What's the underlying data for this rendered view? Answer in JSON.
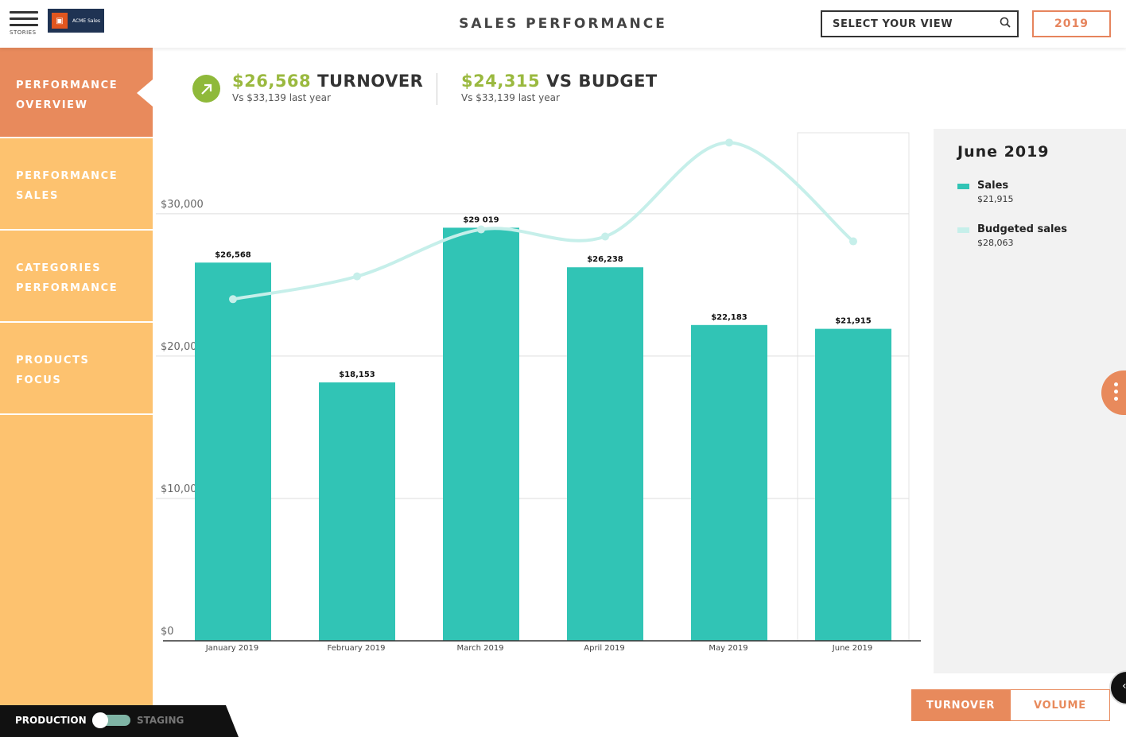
{
  "header": {
    "menu_label": "STORIES",
    "logo_text": "ACME Sales",
    "title": "SALES PERFORMANCE",
    "search_placeholder": "SELECT YOUR VIEW",
    "year": "2019"
  },
  "sidebar": {
    "items": [
      {
        "line1": "PERFORMANCE",
        "line2": "OVERVIEW",
        "active": true
      },
      {
        "line1": "PERFORMANCE",
        "line2": "SALES",
        "active": false
      },
      {
        "line1": "CATEGORIES",
        "line2": "PERFORMANCE",
        "active": false
      },
      {
        "line1": "PRODUCTS",
        "line2": "FOCUS",
        "active": false
      }
    ]
  },
  "kpis": [
    {
      "value": "$26,568",
      "label": "TURNOVER",
      "sub": "Vs $33,139 last year"
    },
    {
      "value": "$24,315",
      "label": "VS BUDGET",
      "sub": "Vs $33,139 last year"
    }
  ],
  "chart_data": {
    "type": "bar",
    "categories": [
      "January 2019",
      "February 2019",
      "March 2019",
      "April 2019",
      "May 2019",
      "June 2019"
    ],
    "series": [
      {
        "name": "Sales",
        "type": "bar",
        "values": [
          26568,
          18153,
          29019,
          26238,
          22183,
          21915
        ],
        "labels": [
          "$26,568",
          "$18,153",
          "$29 019",
          "$26,238",
          "$22,183",
          "$21,915"
        ]
      },
      {
        "name": "Budgeted sales",
        "type": "line",
        "values": [
          24000,
          25600,
          28900,
          28400,
          35000,
          28063
        ]
      }
    ],
    "y_ticks": [
      "$0",
      "$10,000",
      "$20,000",
      "$30,000"
    ],
    "y_tick_values": [
      0,
      10000,
      20000,
      30000
    ],
    "ylim": [
      0,
      35800
    ],
    "highlighted_category": "June 2019",
    "colors": {
      "bar": "#31c4b5",
      "line": "#c6efea"
    }
  },
  "legend": {
    "title": "June 2019",
    "items": [
      {
        "name": "Sales",
        "value": "$21,915",
        "color": "#31c4b5"
      },
      {
        "name": "Budgeted sales",
        "value": "$28,063",
        "color": "#c6efea"
      }
    ]
  },
  "toggle": {
    "turnover": "TURNOVER",
    "volume": "VOLUME"
  },
  "environment": {
    "production": "PRODUCTION",
    "staging": "STAGING"
  },
  "colors": {
    "accent": "#e88a5c",
    "sidebar": "#fdc26f",
    "kpi_green": "#9ab93f"
  }
}
